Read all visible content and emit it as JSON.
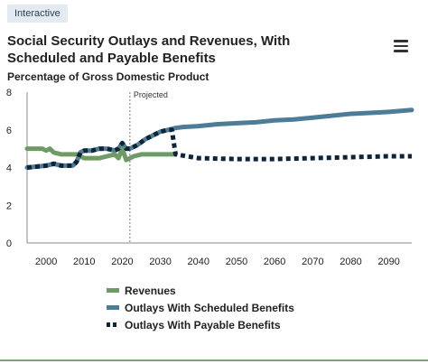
{
  "header": {
    "badge": "Interactive",
    "title": "Social Security Outlays and Revenues, With Scheduled and Payable Benefits",
    "subtitle": "Percentage of Gross Domestic Product",
    "menu_icon": "hamburger-menu-icon"
  },
  "chart_data": {
    "type": "line",
    "title": "Social Security Outlays and Revenues, With Scheduled and Payable Benefits",
    "ylabel": "Percentage of Gross Domestic Product",
    "xlabel": "",
    "xlim": [
      1995,
      2096
    ],
    "ylim": [
      0,
      8
    ],
    "x_ticks": [
      2000,
      2010,
      2020,
      2030,
      2040,
      2050,
      2060,
      2070,
      2080,
      2090
    ],
    "y_ticks": [
      0,
      2,
      4,
      6,
      8
    ],
    "grid": false,
    "legend_position": "bottom",
    "annotations": [
      {
        "text": "Projected",
        "x": 2022
      }
    ],
    "series": [
      {
        "name": "Revenues",
        "color": "#6e9a66",
        "style": "solid",
        "x": [
          1995,
          1999,
          2000,
          2001,
          2002,
          2004,
          2006,
          2008,
          2009,
          2010,
          2011,
          2012,
          2014,
          2016,
          2018,
          2019,
          2020,
          2021,
          2022,
          2023,
          2025,
          2028,
          2032,
          2034
        ],
        "y": [
          5.0,
          5.0,
          4.9,
          5.0,
          4.8,
          4.7,
          4.7,
          4.7,
          4.6,
          4.5,
          4.5,
          4.5,
          4.5,
          4.6,
          4.7,
          4.5,
          5.0,
          4.4,
          4.5,
          4.6,
          4.7,
          4.7,
          4.7,
          4.7
        ]
      },
      {
        "name": "Outlays With Scheduled Benefits",
        "color": "#4e7b96",
        "style": "solid",
        "x": [
          1995,
          2000,
          2002,
          2004,
          2006,
          2007,
          2008,
          2009,
          2010,
          2012,
          2014,
          2016,
          2018,
          2019,
          2020,
          2021,
          2022,
          2024,
          2026,
          2028,
          2030,
          2032,
          2034,
          2036,
          2040,
          2045,
          2050,
          2055,
          2060,
          2065,
          2070,
          2075,
          2080,
          2085,
          2090,
          2096
        ],
        "y": [
          4.0,
          4.1,
          4.2,
          4.1,
          4.1,
          4.1,
          4.3,
          4.8,
          4.9,
          4.9,
          5.0,
          5.0,
          4.9,
          5.0,
          5.3,
          5.0,
          5.0,
          5.2,
          5.5,
          5.7,
          5.9,
          6.0,
          6.1,
          6.15,
          6.2,
          6.3,
          6.35,
          6.4,
          6.5,
          6.55,
          6.65,
          6.75,
          6.85,
          6.9,
          6.95,
          7.05
        ]
      },
      {
        "name": "Outlays With Payable Benefits",
        "color": "#0f2438",
        "style": "dashed",
        "x": [
          1995,
          2000,
          2002,
          2004,
          2006,
          2007,
          2008,
          2009,
          2010,
          2012,
          2014,
          2016,
          2018,
          2019,
          2020,
          2021,
          2022,
          2024,
          2026,
          2028,
          2030,
          2032,
          2033,
          2034,
          2040,
          2050,
          2060,
          2070,
          2080,
          2090,
          2096
        ],
        "y": [
          4.0,
          4.1,
          4.2,
          4.1,
          4.1,
          4.1,
          4.3,
          4.8,
          4.9,
          4.9,
          5.0,
          5.0,
          4.9,
          5.0,
          5.3,
          5.0,
          5.0,
          5.2,
          5.5,
          5.7,
          5.9,
          6.0,
          6.0,
          4.7,
          4.5,
          4.45,
          4.45,
          4.5,
          4.55,
          4.6,
          4.6
        ]
      }
    ]
  }
}
